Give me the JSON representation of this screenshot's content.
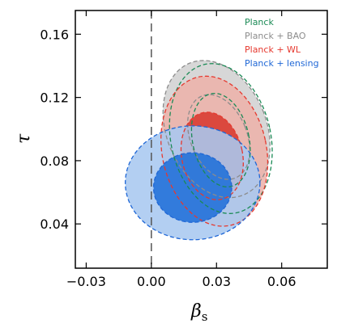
{
  "chart_data": {
    "type": "contour",
    "title": "",
    "xlabel": "β",
    "xlabel_sub": "s",
    "ylabel": "τ",
    "xlim": [
      -0.035,
      0.081
    ],
    "ylim": [
      0.012,
      0.175
    ],
    "xticks": [
      -0.03,
      0.0,
      0.03,
      0.06
    ],
    "xtick_labels": [
      "−0.03",
      "0.00",
      "0.03",
      "0.06"
    ],
    "yticks": [
      0.04,
      0.08,
      0.12,
      0.16
    ],
    "ytick_labels": [
      "0.04",
      "0.08",
      "0.12",
      "0.16"
    ],
    "reference_line": {
      "x": 0.0,
      "style": "dashed",
      "color": "#555555"
    },
    "legend": {
      "placement": "top-right"
    },
    "series": [
      {
        "name": "Planck + BAO",
        "color": "#8c8c8c",
        "contours": [
          {
            "level": "95%",
            "cx": 0.03,
            "cy": 0.1,
            "rx": 0.023,
            "ry": 0.045,
            "rotation": 22,
            "fill": "#d2d2d2",
            "dashed": true
          },
          {
            "level": "68%",
            "cx": 0.031,
            "cy": 0.095,
            "rx": 0.013,
            "ry": 0.028,
            "rotation": 22,
            "fill": "none",
            "dashed": true
          }
        ]
      },
      {
        "name": "Planck",
        "color": "#1a8a55",
        "contours": [
          {
            "level": "95%",
            "cx": 0.032,
            "cy": 0.094,
            "rx": 0.023,
            "ry": 0.048,
            "rotation": 12,
            "fill": "none",
            "dashed": true
          },
          {
            "level": "68%",
            "cx": 0.032,
            "cy": 0.093,
            "rx": 0.013,
            "ry": 0.03,
            "rotation": 12,
            "fill": "none",
            "dashed": true
          }
        ]
      },
      {
        "name": "Planck + WL",
        "color": "#e6382e",
        "contours": [
          {
            "level": "95%",
            "cx": 0.029,
            "cy": 0.086,
            "rx": 0.024,
            "ry": 0.048,
            "rotation": 12,
            "fill": "#edb3ab",
            "dashed": true
          },
          {
            "level": "68%",
            "cx": 0.028,
            "cy": 0.083,
            "rx": 0.014,
            "ry": 0.028,
            "rotation": 12,
            "fill": "#d8392e",
            "dashed": true
          }
        ]
      },
      {
        "name": "Planck + lensing",
        "color": "#1f67d6",
        "contours": [
          {
            "level": "95%",
            "cx": 0.019,
            "cy": 0.066,
            "rx": 0.031,
            "ry": 0.036,
            "rotation": 0,
            "fill": "#a8c8f0",
            "dashed": true
          },
          {
            "level": "68%",
            "cx": 0.019,
            "cy": 0.063,
            "rx": 0.018,
            "ry": 0.022,
            "rotation": 0,
            "fill": "#2070d8",
            "dashed": true
          }
        ]
      }
    ],
    "legend_order": [
      "Planck",
      "Planck + BAO",
      "Planck + WL",
      "Planck + lensing"
    ]
  }
}
